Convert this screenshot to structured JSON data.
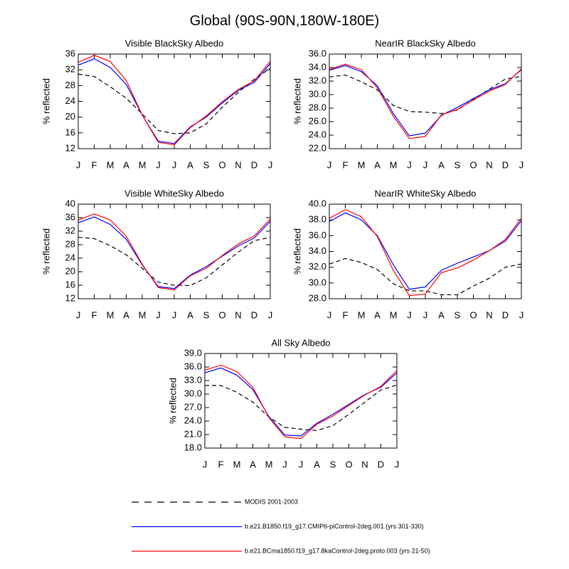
{
  "title": "Global (90S-90N,180W-180E)",
  "legend": [
    {
      "name": "MODIS 2001-2003",
      "color": "#000000",
      "dash": true
    },
    {
      "name": "b.e21.B1850.f19_g17.CMIP6-piControl-2deg.001 (yrs 301-330)",
      "color": "#0000ff",
      "dash": false
    },
    {
      "name": "b.e21.BCma1850.f19_g17.8kaControl-2deg.proto.003 (yrs 21-50)",
      "color": "#ff0000",
      "dash": false
    }
  ],
  "chart_data": [
    {
      "type": "line",
      "title": "Visible BlackSky Albedo",
      "y_label": "% reflected",
      "categories": [
        "J",
        "F",
        "M",
        "A",
        "M",
        "J",
        "J",
        "A",
        "S",
        "O",
        "N",
        "D",
        "J"
      ],
      "ylim": [
        12,
        36
      ],
      "yticks": [
        12,
        16,
        20,
        24,
        28,
        32,
        36
      ],
      "series": [
        {
          "values": [
            30.9,
            30.3,
            27.7,
            24.8,
            20.8,
            16.6,
            15.8,
            16.0,
            18.3,
            22.5,
            26.3,
            29.6,
            32.4
          ]
        },
        {
          "values": [
            33.2,
            34.8,
            32.6,
            28.3,
            20.5,
            13.9,
            13.3,
            17.5,
            20.0,
            23.6,
            26.8,
            28.8,
            33.6
          ]
        },
        {
          "values": [
            33.9,
            35.7,
            34.1,
            29.3,
            20.5,
            13.6,
            13.0,
            17.3,
            20.3,
            23.9,
            27.0,
            29.2,
            34.2
          ]
        }
      ]
    },
    {
      "type": "line",
      "title": "NearIR BlackSky Albedo",
      "y_label": "% reflected",
      "categories": [
        "J",
        "F",
        "M",
        "A",
        "M",
        "J",
        "J",
        "A",
        "S",
        "O",
        "N",
        "D",
        "J"
      ],
      "ylim": [
        22,
        36
      ],
      "yticks": [
        {
          "value": 22,
          "label": "22.0"
        },
        {
          "value": 24,
          "label": "24.0"
        },
        {
          "value": 26,
          "label": "26.0"
        },
        {
          "value": 28,
          "label": "28.0"
        },
        {
          "value": 30,
          "label": "30.0"
        },
        {
          "value": 32,
          "label": "32.0"
        },
        {
          "value": 34,
          "label": "34.0"
        },
        {
          "value": 36,
          "label": "36.0"
        }
      ],
      "series": [
        {
          "values": [
            32.6,
            32.9,
            31.9,
            30.7,
            28.4,
            27.5,
            27.4,
            27.2,
            27.7,
            29.3,
            30.8,
            32.3,
            32.7
          ]
        },
        {
          "values": [
            33.6,
            34.3,
            33.4,
            31.3,
            27.2,
            23.9,
            24.3,
            26.9,
            28.1,
            29.4,
            30.7,
            31.6,
            33.7
          ]
        },
        {
          "values": [
            33.7,
            34.5,
            33.7,
            31.0,
            26.8,
            23.5,
            23.8,
            27.0,
            27.8,
            29.2,
            30.5,
            31.5,
            33.8
          ]
        }
      ]
    },
    {
      "type": "line",
      "title": "Visible WhiteSky Albedo",
      "y_label": "% reflected",
      "categories": [
        "J",
        "F",
        "M",
        "A",
        "M",
        "J",
        "J",
        "A",
        "S",
        "O",
        "N",
        "D",
        "J"
      ],
      "ylim": [
        12,
        40
      ],
      "yticks": [
        12,
        16,
        20,
        24,
        28,
        32,
        36,
        40
      ],
      "series": [
        {
          "values": [
            30.2,
            29.8,
            27.7,
            25.0,
            21.0,
            16.9,
            16.0,
            15.9,
            18.2,
            22.0,
            25.8,
            29.2,
            30.1
          ]
        },
        {
          "values": [
            34.5,
            36.2,
            34.0,
            29.6,
            22.0,
            15.6,
            15.0,
            19.0,
            21.5,
            24.6,
            27.6,
            30.0,
            34.9
          ]
        },
        {
          "values": [
            35.3,
            37.1,
            35.3,
            30.5,
            22.2,
            15.3,
            14.6,
            18.8,
            21.0,
            24.8,
            28.2,
            30.6,
            35.6
          ]
        }
      ]
    },
    {
      "type": "line",
      "title": "NearIR WhiteSky Albedo",
      "y_label": "% reflected",
      "categories": [
        "J",
        "F",
        "M",
        "A",
        "M",
        "J",
        "J",
        "A",
        "S",
        "O",
        "N",
        "D",
        "J"
      ],
      "ylim": [
        28,
        40
      ],
      "yticks": [
        {
          "value": 28,
          "label": "28.0"
        },
        {
          "value": 30,
          "label": "30.0"
        },
        {
          "value": 32,
          "label": "32.0"
        },
        {
          "value": 34,
          "label": "34.0"
        },
        {
          "value": 36,
          "label": "36.0"
        },
        {
          "value": 38,
          "label": "38.0"
        },
        {
          "value": 40,
          "label": "40.0"
        }
      ],
      "series": [
        {
          "values": [
            32.4,
            33.1,
            32.6,
            31.7,
            29.9,
            29.0,
            29.0,
            28.5,
            28.5,
            29.6,
            30.6,
            32.0,
            32.4
          ]
        },
        {
          "values": [
            37.8,
            38.9,
            38.0,
            36.0,
            32.3,
            29.2,
            29.5,
            31.6,
            32.5,
            33.3,
            34.1,
            35.3,
            37.9
          ]
        },
        {
          "values": [
            38.2,
            39.3,
            38.4,
            35.9,
            31.6,
            28.4,
            28.6,
            31.3,
            31.9,
            32.9,
            34.1,
            35.5,
            38.2
          ]
        }
      ]
    },
    {
      "type": "line",
      "title": "All Sky Albedo",
      "y_label": "% reflected",
      "categories": [
        "J",
        "F",
        "M",
        "A",
        "M",
        "J",
        "J",
        "A",
        "S",
        "O",
        "N",
        "D",
        "J"
      ],
      "ylim": [
        18,
        39
      ],
      "yticks": [
        {
          "value": 18,
          "label": "18.0"
        },
        {
          "value": 21,
          "label": "21.0"
        },
        {
          "value": 24,
          "label": "24.0"
        },
        {
          "value": 27,
          "label": "27.0"
        },
        {
          "value": 30,
          "label": "30.0"
        },
        {
          "value": 33,
          "label": "33.0"
        },
        {
          "value": 36,
          "label": "36.0"
        },
        {
          "value": 39,
          "label": "39.0"
        }
      ],
      "series": [
        {
          "values": [
            31.9,
            31.9,
            30.4,
            28.2,
            24.9,
            22.6,
            22.2,
            21.9,
            23.0,
            25.5,
            28.2,
            30.9,
            32.0
          ]
        },
        {
          "values": [
            34.7,
            35.8,
            34.2,
            31.0,
            25.0,
            20.9,
            20.7,
            23.5,
            25.5,
            27.7,
            29.9,
            31.5,
            34.7
          ]
        },
        {
          "values": [
            35.3,
            36.4,
            35.0,
            31.5,
            24.8,
            20.5,
            20.1,
            23.3,
            25.1,
            27.5,
            29.8,
            31.7,
            35.2
          ]
        }
      ]
    }
  ]
}
